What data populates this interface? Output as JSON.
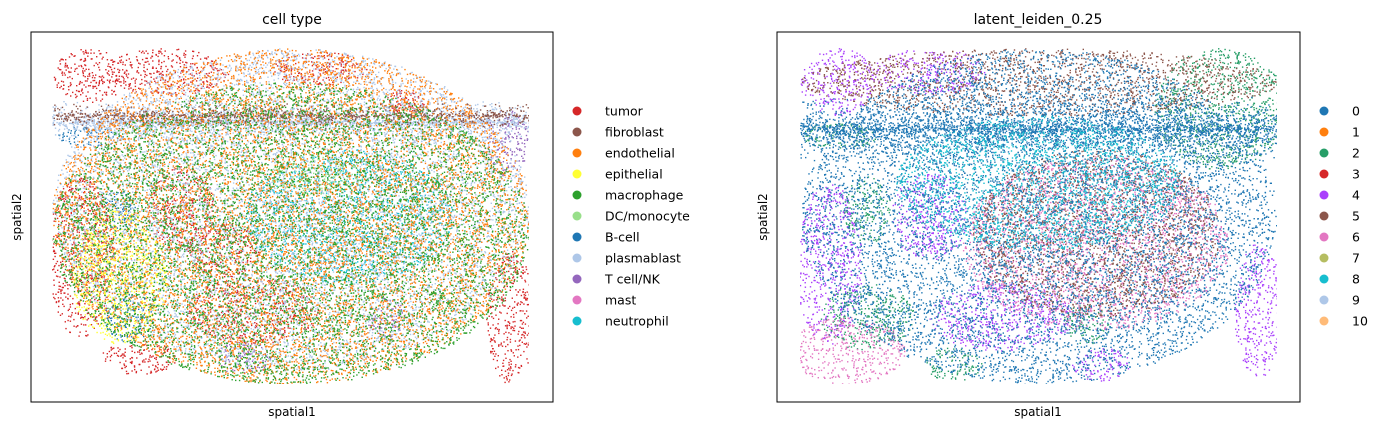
{
  "chart_data": [
    {
      "type": "scatter",
      "title": "cell type",
      "xlabel": "spatial1",
      "ylabel": "spatial2",
      "ticks": "none",
      "legend_position": "right",
      "legend": [
        {
          "label": "tumor",
          "color": "#d62728"
        },
        {
          "label": "fibroblast",
          "color": "#8c564b"
        },
        {
          "label": "endothelial",
          "color": "#ff7f0e"
        },
        {
          "label": "epithelial",
          "color": "#ffff33"
        },
        {
          "label": "macrophage",
          "color": "#2ca02c"
        },
        {
          "label": "DC/monocyte",
          "color": "#98df8a"
        },
        {
          "label": "B-cell",
          "color": "#1f77b4"
        },
        {
          "label": "plasmablast",
          "color": "#aec7e8"
        },
        {
          "label": "T cell/NK",
          "color": "#9467bd"
        },
        {
          "label": "mast",
          "color": "#e377c2"
        },
        {
          "label": "neutrophil",
          "color": "#17becf"
        }
      ],
      "regions": [
        {
          "category": "tumor",
          "shape": "ellipse",
          "x": 0.08,
          "y": 0.92,
          "rx": 0.08,
          "ry": 0.08
        },
        {
          "category": "tumor",
          "shape": "ellipse",
          "x": 0.24,
          "y": 0.93,
          "rx": 0.13,
          "ry": 0.07
        },
        {
          "category": "tumor",
          "shape": "ellipse",
          "x": 0.56,
          "y": 0.94,
          "rx": 0.1,
          "ry": 0.05
        },
        {
          "category": "tumor",
          "shape": "ellipse",
          "x": 0.06,
          "y": 0.38,
          "rx": 0.07,
          "ry": 0.24
        },
        {
          "category": "tumor",
          "shape": "ellipse",
          "x": 0.27,
          "y": 0.52,
          "rx": 0.07,
          "ry": 0.13
        },
        {
          "category": "tumor",
          "shape": "ellipse",
          "x": 0.42,
          "y": 0.22,
          "rx": 0.14,
          "ry": 0.1
        },
        {
          "category": "tumor",
          "shape": "ellipse",
          "x": 0.36,
          "y": 0.4,
          "rx": 0.08,
          "ry": 0.08
        },
        {
          "category": "tumor",
          "shape": "ellipse",
          "x": 0.96,
          "y": 0.2,
          "rx": 0.05,
          "ry": 0.2
        },
        {
          "category": "tumor",
          "shape": "ellipse",
          "x": 0.18,
          "y": 0.08,
          "rx": 0.08,
          "ry": 0.05
        },
        {
          "category": "tumor",
          "shape": "ellipse",
          "x": 0.74,
          "y": 0.84,
          "rx": 0.04,
          "ry": 0.04
        },
        {
          "category": "B-cell",
          "shape": "ellipse",
          "x": 0.14,
          "y": 0.52,
          "rx": 0.035,
          "ry": 0.06
        },
        {
          "category": "B-cell",
          "shape": "ellipse",
          "x": 0.16,
          "y": 0.2,
          "rx": 0.05,
          "ry": 0.08
        },
        {
          "category": "B-cell",
          "shape": "ellipse",
          "x": 0.08,
          "y": 0.74,
          "rx": 0.07,
          "ry": 0.03
        },
        {
          "category": "T cell/NK",
          "shape": "ellipse",
          "x": 0.95,
          "y": 0.72,
          "rx": 0.05,
          "ry": 0.1
        },
        {
          "category": "T cell/NK",
          "shape": "ellipse",
          "x": 0.7,
          "y": 0.2,
          "rx": 0.04,
          "ry": 0.06
        },
        {
          "category": "T cell/NK",
          "shape": "ellipse",
          "x": 0.4,
          "y": 0.08,
          "rx": 0.06,
          "ry": 0.05
        },
        {
          "category": "neutrophil",
          "shape": "ellipse",
          "x": 0.62,
          "y": 0.5,
          "rx": 0.22,
          "ry": 0.2
        },
        {
          "category": "DC/monocyte",
          "shape": "ellipse",
          "x": 0.55,
          "y": 0.62,
          "rx": 0.1,
          "ry": 0.06
        },
        {
          "category": "plasmablast",
          "shape": "band",
          "x": 0.5,
          "y": 0.78,
          "rx": 0.5,
          "ry": 0.07
        },
        {
          "category": "plasmablast",
          "shape": "ellipse",
          "x": 0.5,
          "y": 0.52,
          "rx": 0.5,
          "ry": 0.48
        },
        {
          "category": "fibroblast",
          "shape": "band",
          "x": 0.5,
          "y": 0.8,
          "rx": 0.5,
          "ry": 0.04
        },
        {
          "category": "endothelial",
          "shape": "ellipse",
          "x": 0.5,
          "y": 0.5,
          "rx": 0.5,
          "ry": 0.5
        },
        {
          "category": "epithelial",
          "shape": "ellipse",
          "x": 0.14,
          "y": 0.32,
          "rx": 0.1,
          "ry": 0.2
        },
        {
          "category": "macrophage",
          "shape": "ellipse",
          "x": 0.5,
          "y": 0.45,
          "rx": 0.5,
          "ry": 0.45
        }
      ]
    },
    {
      "type": "scatter",
      "title": "latent_leiden_0.25",
      "xlabel": "spatial1",
      "ylabel": "spatial2",
      "ticks": "none",
      "legend_position": "right",
      "legend": [
        {
          "label": "0",
          "color": "#1f77b4"
        },
        {
          "label": "1",
          "color": "#ff7f0e"
        },
        {
          "label": "2",
          "color": "#279e68"
        },
        {
          "label": "3",
          "color": "#d62728"
        },
        {
          "label": "4",
          "color": "#aa40fc"
        },
        {
          "label": "5",
          "color": "#8c564b"
        },
        {
          "label": "6",
          "color": "#e377c2"
        },
        {
          "label": "7",
          "color": "#b5bd61"
        },
        {
          "label": "8",
          "color": "#17becf"
        },
        {
          "label": "9",
          "color": "#aec7e8"
        },
        {
          "label": "10",
          "color": "#ffbb78"
        }
      ],
      "regions": [
        {
          "category": "4",
          "shape": "ellipse",
          "x": 0.08,
          "y": 0.9,
          "rx": 0.08,
          "ry": 0.1
        },
        {
          "category": "4",
          "shape": "ellipse",
          "x": 0.27,
          "y": 0.93,
          "rx": 0.12,
          "ry": 0.07
        },
        {
          "category": "4",
          "shape": "ellipse",
          "x": 0.06,
          "y": 0.36,
          "rx": 0.07,
          "ry": 0.24
        },
        {
          "category": "4",
          "shape": "ellipse",
          "x": 0.27,
          "y": 0.5,
          "rx": 0.08,
          "ry": 0.13
        },
        {
          "category": "4",
          "shape": "ellipse",
          "x": 0.42,
          "y": 0.2,
          "rx": 0.15,
          "ry": 0.1
        },
        {
          "category": "4",
          "shape": "ellipse",
          "x": 0.96,
          "y": 0.22,
          "rx": 0.05,
          "ry": 0.2
        },
        {
          "category": "4",
          "shape": "ellipse",
          "x": 0.63,
          "y": 0.06,
          "rx": 0.06,
          "ry": 0.05
        },
        {
          "category": "2",
          "shape": "ellipse",
          "x": 0.88,
          "y": 0.82,
          "rx": 0.14,
          "ry": 0.18
        },
        {
          "category": "2",
          "shape": "ellipse",
          "x": 0.14,
          "y": 0.2,
          "rx": 0.1,
          "ry": 0.1
        },
        {
          "category": "2",
          "shape": "ellipse",
          "x": 0.14,
          "y": 0.52,
          "rx": 0.05,
          "ry": 0.1
        },
        {
          "category": "2",
          "shape": "ellipse",
          "x": 0.08,
          "y": 0.74,
          "rx": 0.08,
          "ry": 0.04
        },
        {
          "category": "2",
          "shape": "ellipse",
          "x": 0.6,
          "y": 0.18,
          "rx": 0.05,
          "ry": 0.06
        },
        {
          "category": "2",
          "shape": "ellipse",
          "x": 0.32,
          "y": 0.06,
          "rx": 0.06,
          "ry": 0.05
        },
        {
          "category": "6",
          "shape": "ellipse",
          "x": 0.62,
          "y": 0.42,
          "rx": 0.28,
          "ry": 0.26
        },
        {
          "category": "6",
          "shape": "ellipse",
          "x": 0.1,
          "y": 0.1,
          "rx": 0.12,
          "ry": 0.1
        },
        {
          "category": "5",
          "shape": "ellipse",
          "x": 0.62,
          "y": 0.45,
          "rx": 0.26,
          "ry": 0.25
        },
        {
          "category": "5",
          "shape": "ellipse",
          "x": 0.5,
          "y": 0.9,
          "rx": 0.5,
          "ry": 0.1
        },
        {
          "category": "0",
          "shape": "band",
          "x": 0.5,
          "y": 0.76,
          "rx": 0.5,
          "ry": 0.1
        },
        {
          "category": "0",
          "shape": "ellipse",
          "x": 0.5,
          "y": 0.5,
          "rx": 0.5,
          "ry": 0.5
        },
        {
          "category": "8",
          "shape": "ellipse",
          "x": 0.5,
          "y": 0.6,
          "rx": 0.3,
          "ry": 0.2
        }
      ]
    }
  ]
}
